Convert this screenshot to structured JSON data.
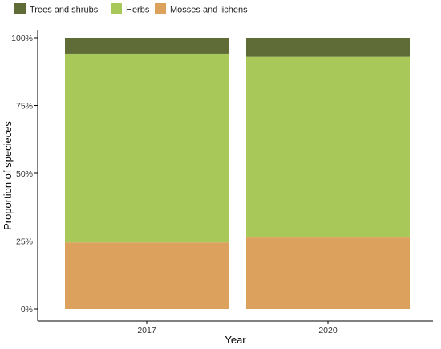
{
  "chart_data": {
    "type": "bar",
    "stacked": true,
    "categories": [
      "2017",
      "2020"
    ],
    "series": [
      {
        "name": "Mosses and lichens",
        "color": "#dda15e",
        "values": [
          0.245,
          0.263
        ]
      },
      {
        "name": "Herbs",
        "color": "#a8c95a",
        "values": [
          0.696,
          0.667
        ]
      },
      {
        "name": "Trees and shrubs",
        "color": "#606c38",
        "values": [
          0.059,
          0.07
        ]
      }
    ],
    "legend_order": [
      "Trees and shrubs",
      "Herbs",
      "Mosses and lichens"
    ],
    "legend_position": "top-left",
    "xlabel": "Year",
    "ylabel": "Proportion of specieсes",
    "ylim": [
      0,
      1
    ],
    "yticks": [
      0,
      0.25,
      0.5,
      0.75,
      1
    ],
    "ytick_labels": [
      "0%",
      "25%",
      "50%",
      "75%",
      "100%"
    ],
    "grid": false
  }
}
